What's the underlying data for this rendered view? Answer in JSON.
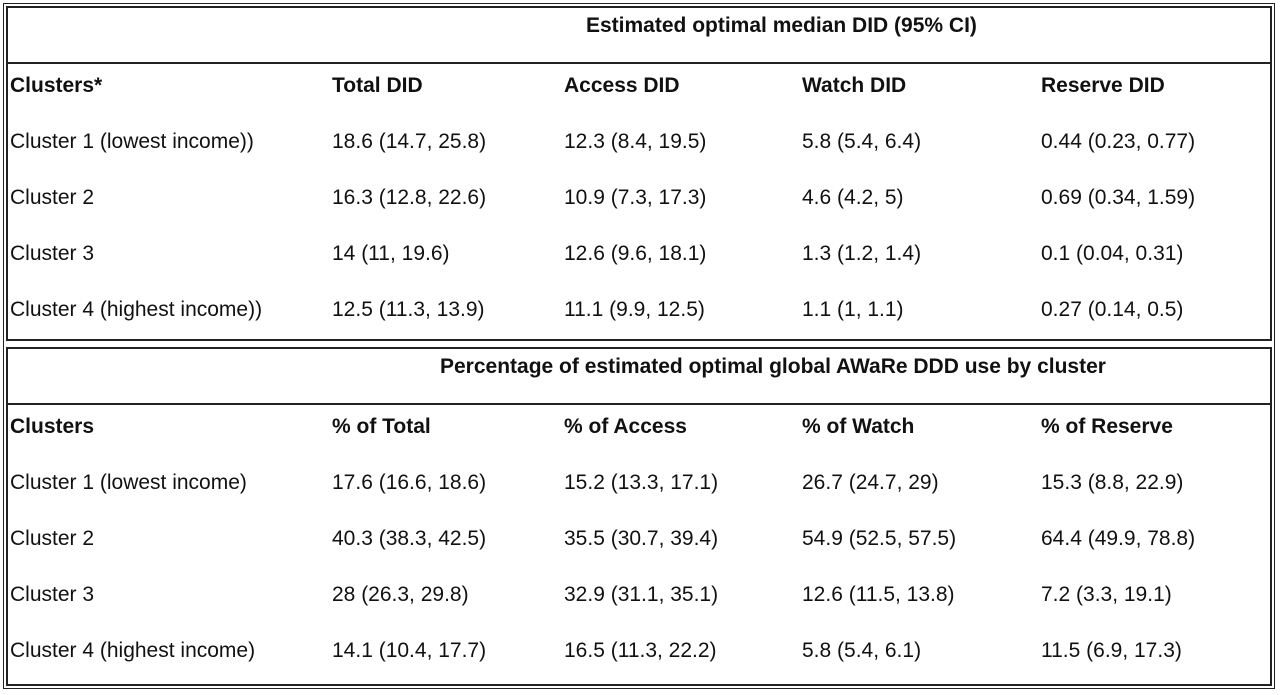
{
  "tables": [
    {
      "title": "Estimated optimal median DID (95% CI)",
      "headers": [
        "Clusters*",
        "Total DID",
        "Access DID",
        "Watch DID",
        "Reserve DID"
      ],
      "rows": [
        [
          "Cluster 1 (lowest income))",
          "18.6 (14.7, 25.8)",
          "12.3 (8.4, 19.5)",
          "5.8 (5.4, 6.4)",
          "0.44 (0.23, 0.77)"
        ],
        [
          "Cluster 2",
          "16.3 (12.8, 22.6)",
          "10.9 (7.3, 17.3)",
          "4.6 (4.2, 5)",
          "0.69 (0.34, 1.59)"
        ],
        [
          "Cluster 3",
          "14 (11, 19.6)",
          "12.6 (9.6, 18.1)",
          "1.3 (1.2, 1.4)",
          "0.1 (0.04, 0.31)"
        ],
        [
          "Cluster 4 (highest income))",
          "12.5 (11.3, 13.9)",
          "11.1 (9.9, 12.5)",
          "1.1 (1, 1.1)",
          "0.27 (0.14, 0.5)"
        ]
      ]
    },
    {
      "title": "Percentage of estimated optimal global AWaRe DDD use by cluster",
      "headers": [
        "Clusters",
        "% of Total",
        "% of Access",
        "% of Watch",
        "% of Reserve"
      ],
      "rows": [
        [
          "Cluster 1 (lowest income)",
          "17.6 (16.6, 18.6)",
          "15.2 (13.3, 17.1)",
          "26.7 (24.7, 29)",
          "15.3 (8.8, 22.9)"
        ],
        [
          "Cluster 2",
          "40.3 (38.3, 42.5)",
          "35.5 (30.7, 39.4)",
          "54.9 (52.5, 57.5)",
          "64.4 (49.9, 78.8)"
        ],
        [
          "Cluster 3",
          "28 (26.3, 29.8)",
          "32.9 (31.1, 35.1)",
          "12.6 (11.5, 13.8)",
          "7.2 (3.3, 19.1)"
        ],
        [
          "Cluster 4 (highest income)",
          "14.1 (10.4, 17.7)",
          "16.5 (11.3, 22.2)",
          "5.8 (5.4, 6.1)",
          "11.5 (6.9, 17.3)"
        ]
      ]
    }
  ]
}
